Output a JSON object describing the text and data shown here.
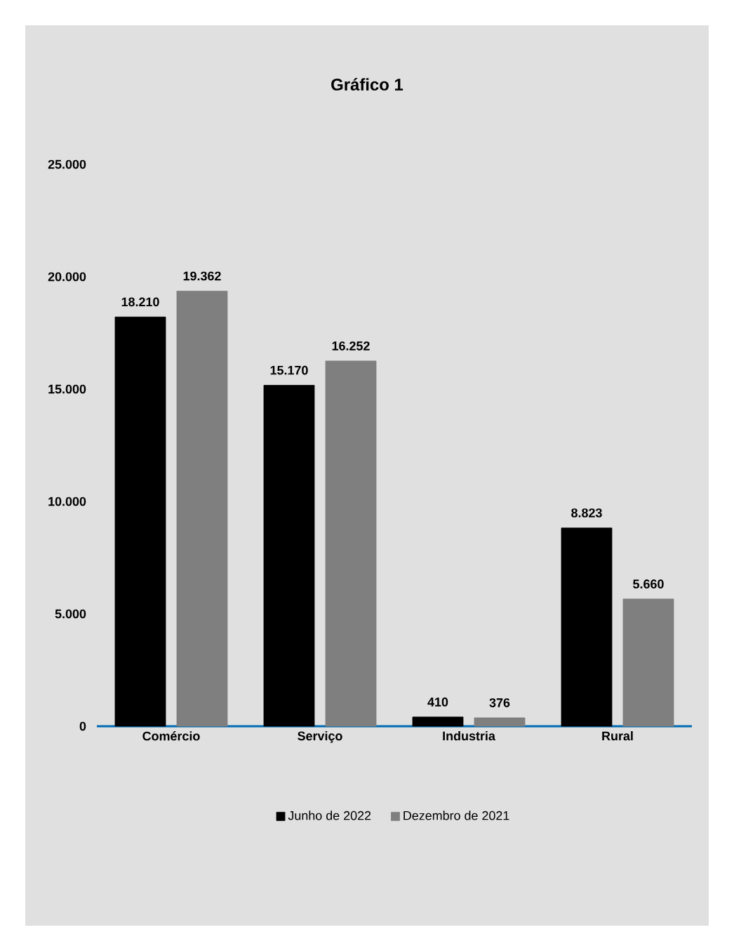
{
  "chart_data": {
    "type": "bar",
    "title": "Gráfico 1",
    "categories": [
      "Comércio",
      "Serviço",
      "Industria",
      "Rural"
    ],
    "series": [
      {
        "name": "Junho de 2022",
        "color": "#000000",
        "values": [
          18210,
          15170,
          410,
          8823
        ],
        "value_labels": [
          "18.210",
          "15.170",
          "410",
          "8.823"
        ]
      },
      {
        "name": "Dezembro de 2021",
        "color": "#7f7f7f",
        "values": [
          19362,
          16252,
          376,
          5660
        ],
        "value_labels": [
          "19.362",
          "16.252",
          "376",
          "5.660"
        ]
      }
    ],
    "ylim": [
      0,
      25000
    ],
    "yticks": [
      {
        "value": 0,
        "label": "0"
      },
      {
        "value": 5000,
        "label": "5.000"
      },
      {
        "value": 10000,
        "label": "10.000"
      },
      {
        "value": 15000,
        "label": "15.000"
      },
      {
        "value": 20000,
        "label": "20.000"
      },
      {
        "value": 25000,
        "label": "25.000"
      }
    ],
    "legend": "bottom",
    "grid": false
  }
}
